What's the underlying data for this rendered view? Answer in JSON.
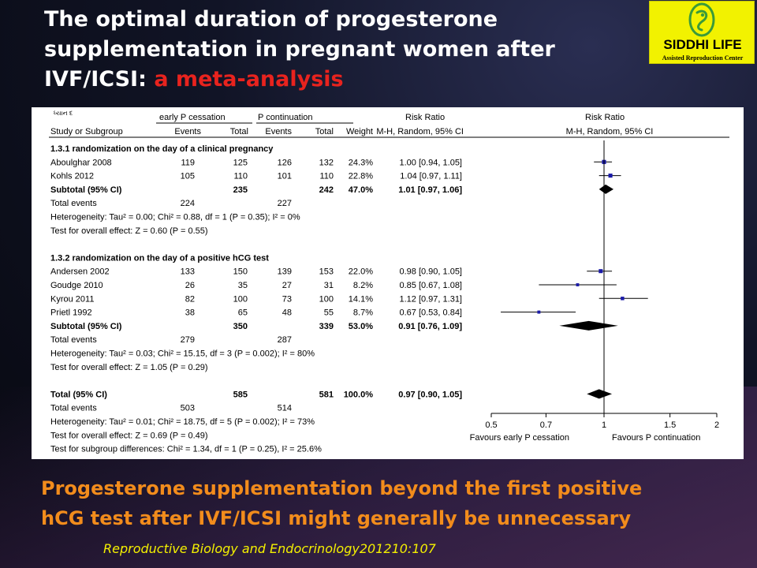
{
  "slide": {
    "title_line1": "The optimal duration of progesterone",
    "title_line2": "supplementation in pregnant women after",
    "title_line3_prefix": "IVF/ICSI: ",
    "title_line3_accent": "a meta-analysis",
    "conclusion_line1": "Progesterone supplementation beyond the first positive",
    "conclusion_line2": "hCG test after IVF/ICSI might generally be unnecessary",
    "citation": "Reproductive Biology and Endocrinology201210:107",
    "colors": {
      "title": "#ffffff",
      "accent": "#e8231e",
      "conclusion": "#f28c1c",
      "citation": "#f4f000",
      "logo_bg": "#f2f200"
    }
  },
  "logo": {
    "name": "SIDDHI LIFE",
    "tagline": "Assisted Reproduction Center",
    "icon": "embryo-icon"
  },
  "forest": {
    "corner_mark": "ધ્યાન દ",
    "group_headers": {
      "early": "early P cessation",
      "cont": "P continuation",
      "rr_left": "Risk Ratio",
      "rr_right": "Risk Ratio"
    },
    "column_headers": {
      "study": "Study or Subgroup",
      "events1": "Events",
      "total1": "Total",
      "events2": "Events",
      "total2": "Total",
      "weight": "Weight",
      "method": "M-H, Random, 95% CI",
      "method_right": "M-H, Random, 95% CI"
    },
    "axis_ticks": [
      "0.5",
      "0.7",
      "1",
      "1.5",
      "2"
    ],
    "favours_left": "Favours early P cessation",
    "favours_right": "Favours P continuation"
  },
  "chart_data": {
    "type": "forest",
    "scale": "log",
    "xlim": [
      0.5,
      2
    ],
    "ticks": [
      0.5,
      0.7,
      1,
      1.5,
      2
    ],
    "reference_line": 1,
    "rows": [
      {
        "kind": "subgroup",
        "label": "1.3.1 randomization on the day of a clinical pregnancy"
      },
      {
        "kind": "study",
        "label": "Aboulghar 2008",
        "e1": "119",
        "t1": "125",
        "e2": "126",
        "t2": "132",
        "weight": "24.3%",
        "ci_text": "1.00 [0.94, 1.05]",
        "rr": 1.0,
        "lo": 0.94,
        "hi": 1.05,
        "w": 24.3
      },
      {
        "kind": "study",
        "label": "Kohls 2012",
        "e1": "105",
        "t1": "110",
        "e2": "101",
        "t2": "110",
        "weight": "22.8%",
        "ci_text": "1.04 [0.97, 1.11]",
        "rr": 1.04,
        "lo": 0.97,
        "hi": 1.11,
        "w": 22.8
      },
      {
        "kind": "subtotal",
        "label": "Subtotal (95% CI)",
        "t1": "235",
        "t2": "242",
        "weight": "47.0%",
        "ci_text": "1.01 [0.97, 1.06]",
        "rr": 1.01,
        "lo": 0.97,
        "hi": 1.06
      },
      {
        "kind": "events",
        "label": "Total events",
        "e1": "224",
        "e2": "227"
      },
      {
        "kind": "note",
        "label": "Heterogeneity: Tau² = 0.00; Chi² = 0.88, df = 1 (P = 0.35); I² = 0%"
      },
      {
        "kind": "note",
        "label": "Test for overall effect: Z = 0.60 (P = 0.55)"
      },
      {
        "kind": "blank"
      },
      {
        "kind": "subgroup",
        "label": "1.3.2 randomization on the day of a positive hCG test"
      },
      {
        "kind": "study",
        "label": "Andersen 2002",
        "e1": "133",
        "t1": "150",
        "e2": "139",
        "t2": "153",
        "weight": "22.0%",
        "ci_text": "0.98 [0.90, 1.05]",
        "rr": 0.98,
        "lo": 0.9,
        "hi": 1.05,
        "w": 22.0
      },
      {
        "kind": "study",
        "label": "Goudge 2010",
        "e1": "26",
        "t1": "35",
        "e2": "27",
        "t2": "31",
        "weight": "8.2%",
        "ci_text": "0.85 [0.67, 1.08]",
        "rr": 0.85,
        "lo": 0.67,
        "hi": 1.08,
        "w": 8.2
      },
      {
        "kind": "study",
        "label": "Kyrou 2011",
        "e1": "82",
        "t1": "100",
        "e2": "73",
        "t2": "100",
        "weight": "14.1%",
        "ci_text": "1.12 [0.97, 1.31]",
        "rr": 1.12,
        "lo": 0.97,
        "hi": 1.31,
        "w": 14.1
      },
      {
        "kind": "study",
        "label": "Prietl 1992",
        "e1": "38",
        "t1": "65",
        "e2": "48",
        "t2": "55",
        "weight": "8.7%",
        "ci_text": "0.67 [0.53, 0.84]",
        "rr": 0.67,
        "lo": 0.53,
        "hi": 0.84,
        "w": 8.7
      },
      {
        "kind": "subtotal",
        "label": "Subtotal (95% CI)",
        "t1": "350",
        "t2": "339",
        "weight": "53.0%",
        "ci_text": "0.91 [0.76, 1.09]",
        "rr": 0.91,
        "lo": 0.76,
        "hi": 1.09
      },
      {
        "kind": "events",
        "label": "Total events",
        "e1": "279",
        "e2": "287"
      },
      {
        "kind": "note",
        "label": "Heterogeneity: Tau² = 0.03; Chi² = 15.15, df = 3 (P = 0.002); I² = 80%"
      },
      {
        "kind": "note",
        "label": "Test for overall effect: Z = 1.05 (P = 0.29)"
      },
      {
        "kind": "blank"
      },
      {
        "kind": "subtotal",
        "label": "Total (95% CI)",
        "t1": "585",
        "t2": "581",
        "weight": "100.0%",
        "ci_text": "0.97 [0.90, 1.05]",
        "rr": 0.97,
        "lo": 0.9,
        "hi": 1.05
      },
      {
        "kind": "events",
        "label": "Total events",
        "e1": "503",
        "e2": "514"
      },
      {
        "kind": "note",
        "label": "Heterogeneity: Tau² = 0.01; Chi² = 18.75, df = 5 (P = 0.002); I² = 73%"
      },
      {
        "kind": "note",
        "label": "Test for overall effect: Z = 0.69 (P = 0.49)"
      },
      {
        "kind": "note",
        "label": "Test for subgroup differences: Chi² = 1.34, df = 1 (P = 0.25), I² = 25.6%"
      }
    ]
  }
}
